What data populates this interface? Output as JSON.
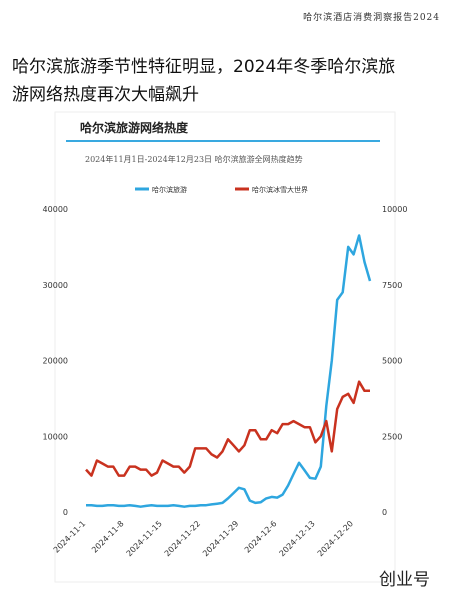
{
  "header": "哈尔滨酒店消费洞察报告2024",
  "headline": [
    "哈尔滨旅游季节性特征明显，2024年冬季哈尔滨旅",
    "游网络热度再次大幅飙升"
  ],
  "watermark": "创业号",
  "chart_data": {
    "type": "line",
    "title": "哈尔滨旅游网络热度",
    "subtitle": "2024年11月1日-2024年12月23日 哈尔滨旅游全网热度趋势",
    "categories": [
      "2024-11-1",
      null,
      null,
      null,
      null,
      null,
      null,
      "2024-11-8",
      null,
      null,
      null,
      null,
      null,
      null,
      "2024-11-15",
      null,
      null,
      null,
      null,
      null,
      null,
      "2024-11-22",
      null,
      null,
      null,
      null,
      null,
      null,
      "2024-11-29",
      null,
      null,
      null,
      null,
      null,
      null,
      "2024-12-6",
      null,
      null,
      null,
      null,
      null,
      null,
      "2024-12-13",
      null,
      null,
      null,
      null,
      null,
      null,
      "2024-12-20",
      null,
      null,
      null
    ],
    "series": [
      {
        "name": "哈尔滨旅游",
        "color": "#2ea6df",
        "values": [
          900,
          900,
          800,
          800,
          900,
          900,
          800,
          800,
          900,
          800,
          700,
          800,
          900,
          800,
          800,
          800,
          900,
          800,
          700,
          800,
          800,
          900,
          900,
          1000,
          1100,
          1200,
          1800,
          2500,
          3200,
          3000,
          1500,
          1200,
          1300,
          1800,
          2000,
          1900,
          2300,
          3500,
          5000,
          6500,
          5500,
          4500,
          4400,
          6000,
          14000,
          20000,
          28000,
          29000,
          35000,
          34000,
          36500,
          33000,
          30500
        ]
      },
      {
        "name": "哈尔滨冰雪大世界",
        "color": "#c9321f",
        "axis": "y2",
        "values": [
          1400,
          1200,
          1700,
          1600,
          1500,
          1500,
          1200,
          1200,
          1500,
          1500,
          1400,
          1400,
          1200,
          1300,
          1700,
          1600,
          1500,
          1500,
          1300,
          1500,
          2100,
          2100,
          2100,
          1900,
          1800,
          2000,
          2400,
          2200,
          2000,
          2200,
          2700,
          2700,
          2400,
          2400,
          2700,
          2600,
          2900,
          2900,
          3000,
          2900,
          2800,
          2800,
          2300,
          2500,
          3000,
          2000,
          3400,
          3800,
          3900,
          3600,
          4300,
          4000,
          4000
        ]
      }
    ],
    "ylim": [
      0,
      40000
    ],
    "yticks": [
      0,
      10000,
      20000,
      30000,
      40000
    ],
    "y2lim": [
      0,
      10000
    ],
    "y2ticks": [
      0,
      2500,
      5000,
      7500,
      10000
    ]
  }
}
